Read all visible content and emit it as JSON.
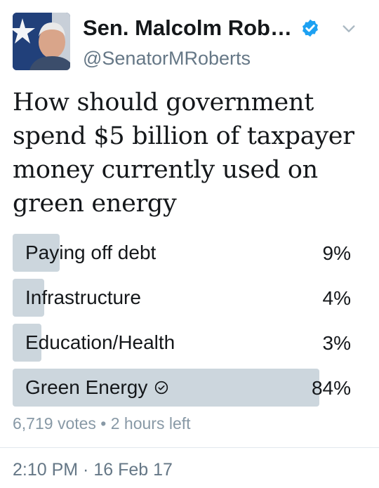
{
  "author": {
    "display_name": "Sen. Malcolm Rob…",
    "handle": "@SenatorMRoberts",
    "verified_icon": "verified-badge-icon",
    "verified_color": "#1da1f2",
    "menu_icon": "chevron-down-icon"
  },
  "tweet": {
    "text": "How should government spend $5 billion of taxpayer money currently used on green energy"
  },
  "poll": {
    "options": [
      {
        "label": "Paying off debt",
        "percent_text": "9%",
        "percent": 9,
        "selected": false
      },
      {
        "label": "Infrastructure",
        "percent_text": "4%",
        "percent": 4,
        "selected": false
      },
      {
        "label": "Education/Health",
        "percent_text": "3%",
        "percent": 3,
        "selected": false
      },
      {
        "label": "Green Energy",
        "percent_text": "84%",
        "percent": 84,
        "selected": true
      }
    ],
    "meta": "6,719 votes • 2 hours left",
    "bar_color": "#ccd6dd",
    "selected_icon": "check-circle-icon"
  },
  "timestamp": "2:10 PM · 16 Feb 17"
}
